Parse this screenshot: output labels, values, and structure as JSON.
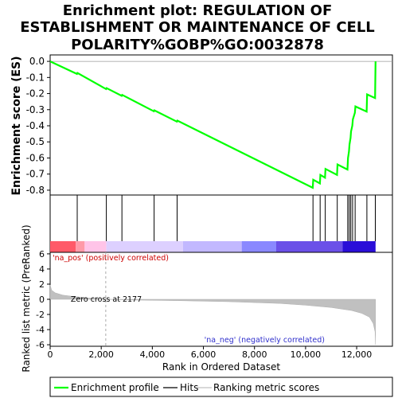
{
  "chart_data": {
    "type": "line",
    "title_lines": [
      "Enrichment plot: REGULATION OF",
      "ESTABLISHMENT OR MAINTENANCE OF CELL",
      "POLARITY%GOBP%GO:0032878"
    ],
    "es_panel": {
      "ylabel": "Enrichment score (ES)",
      "ylim": [
        -0.83,
        0.04
      ],
      "yticks": [
        0.0,
        -0.1,
        -0.2,
        -0.3,
        -0.4,
        -0.5,
        -0.6,
        -0.7,
        -0.8
      ],
      "ytick_labels": [
        "0.0",
        "-0.1",
        "-0.2",
        "-0.3",
        "-0.4",
        "-0.5",
        "-0.6",
        "-0.7",
        "-0.8"
      ],
      "zero_line": true,
      "series": [
        {
          "name": "Enrichment profile",
          "color": "#00ff00",
          "points": [
            [
              0,
              0
            ],
            [
              1050,
              -0.078
            ],
            [
              1070,
              -0.072
            ],
            [
              2190,
              -0.172
            ],
            [
              2210,
              -0.166
            ],
            [
              2800,
              -0.214
            ],
            [
              2820,
              -0.208
            ],
            [
              4060,
              -0.31
            ],
            [
              4080,
              -0.304
            ],
            [
              4960,
              -0.374
            ],
            [
              4980,
              -0.368
            ],
            [
              10280,
              -0.785
            ],
            [
              10300,
              -0.735
            ],
            [
              10560,
              -0.758
            ],
            [
              10580,
              -0.705
            ],
            [
              10760,
              -0.722
            ],
            [
              10780,
              -0.668
            ],
            [
              11230,
              -0.705
            ],
            [
              11250,
              -0.64
            ],
            [
              11640,
              -0.672
            ],
            [
              11660,
              -0.6
            ],
            [
              11700,
              -0.56
            ],
            [
              11720,
              -0.515
            ],
            [
              11760,
              -0.475
            ],
            [
              11780,
              -0.435
            ],
            [
              11830,
              -0.4
            ],
            [
              11850,
              -0.36
            ],
            [
              11930,
              -0.32
            ],
            [
              11950,
              -0.28
            ],
            [
              12390,
              -0.312
            ],
            [
              12410,
              -0.205
            ],
            [
              12720,
              -0.228
            ],
            [
              12740,
              0.0
            ]
          ]
        }
      ]
    },
    "hits": {
      "name": "Hits",
      "color": "#000000",
      "positions": [
        1060,
        2200,
        2810,
        4070,
        4970,
        10290,
        10570,
        10770,
        11240,
        11650,
        11710,
        11770,
        11840,
        11940,
        12400,
        12730
      ]
    },
    "ranked_metric": {
      "ylabel": "Ranked list metric (PreRanked)",
      "ylim": [
        -6.2,
        6.2
      ],
      "yticks": [
        6,
        4,
        2,
        0,
        -2,
        -4,
        -6
      ],
      "ytick_labels": [
        "6",
        "4",
        "2",
        "0",
        "-2",
        "-4",
        "-6"
      ],
      "xlabel": "Rank in Ordered Dataset",
      "xlim": [
        0,
        13400
      ],
      "xticks": [
        0,
        2000,
        4000,
        6000,
        8000,
        10000,
        12000
      ],
      "xtick_labels": [
        "0",
        "2,000",
        "4,000",
        "6,000",
        "8,000",
        "10,000",
        "12,000"
      ],
      "series_name": "Ranking metric scores",
      "series_color": "#c0c0c0",
      "profile": [
        [
          0,
          1.9
        ],
        [
          60,
          1.2
        ],
        [
          200,
          0.85
        ],
        [
          500,
          0.55
        ],
        [
          900,
          0.38
        ],
        [
          1400,
          0.2
        ],
        [
          2177,
          0.0
        ],
        [
          3000,
          -0.08
        ],
        [
          5000,
          -0.18
        ],
        [
          7000,
          -0.32
        ],
        [
          9000,
          -0.55
        ],
        [
          10000,
          -0.78
        ],
        [
          11000,
          -1.08
        ],
        [
          11800,
          -1.48
        ],
        [
          12200,
          -1.85
        ],
        [
          12500,
          -2.35
        ],
        [
          12650,
          -3.2
        ],
        [
          12720,
          -4.3
        ],
        [
          12740,
          -6.0
        ]
      ],
      "zero_cross": 2177,
      "zero_cross_label": "Zero cross at 2177",
      "pos_label": "'na_pos' (positively correlated)",
      "neg_label": "'na_neg' (negatively correlated)"
    },
    "color_bar": {
      "end": 12740,
      "segments": [
        {
          "from": 0,
          "to": 1000,
          "color": "#ff5a68"
        },
        {
          "from": 1000,
          "to": 1350,
          "color": "#ff9aa8"
        },
        {
          "from": 1350,
          "to": 2200,
          "color": "#ffc4e8"
        },
        {
          "from": 2200,
          "to": 5200,
          "color": "#ddd0ff"
        },
        {
          "from": 5200,
          "to": 7500,
          "color": "#c2b8ff"
        },
        {
          "from": 7500,
          "to": 8850,
          "color": "#8a88ff"
        },
        {
          "from": 8850,
          "to": 11450,
          "color": "#6b50e8"
        },
        {
          "from": 11450,
          "to": 12740,
          "color": "#2a0ed8"
        }
      ]
    },
    "legend": [
      {
        "label": "Enrichment profile",
        "color": "#00ff00"
      },
      {
        "label": "Hits",
        "color": "#000000"
      },
      {
        "label": "Ranking metric scores",
        "color": "#c0c0c0"
      }
    ]
  }
}
